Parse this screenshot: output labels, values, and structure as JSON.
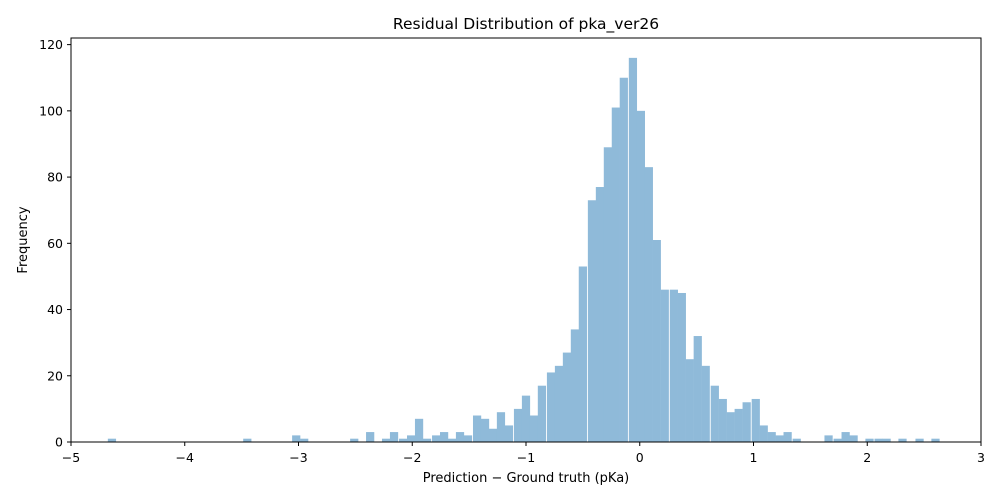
{
  "chart_data": {
    "type": "bar",
    "title": "Residual Distribution of pka_ver26",
    "xlabel": "Prediction − Ground truth (pKa)",
    "ylabel": "Frequency",
    "xlim": [
      -5.0,
      3.0
    ],
    "ylim": [
      0,
      122
    ],
    "xticks": [
      -5,
      -4,
      -3,
      -2,
      -1,
      0,
      1,
      2,
      3
    ],
    "xtick_labels": [
      "−5",
      "−4",
      "−3",
      "−2",
      "−1",
      "0",
      "1",
      "2",
      "3"
    ],
    "yticks": [
      0,
      20,
      40,
      60,
      80,
      100,
      120
    ],
    "ytick_labels": [
      "0",
      "20",
      "40",
      "60",
      "80",
      "100",
      "120"
    ],
    "grid": false,
    "legend": null,
    "bar_color": "#8fbad9",
    "bin_width": 0.0723,
    "bins": [
      {
        "x": -4.64,
        "count": 1
      },
      {
        "x": -3.45,
        "count": 1
      },
      {
        "x": -3.02,
        "count": 2
      },
      {
        "x": -2.95,
        "count": 1
      },
      {
        "x": -2.51,
        "count": 1
      },
      {
        "x": -2.37,
        "count": 3
      },
      {
        "x": -2.23,
        "count": 1
      },
      {
        "x": -2.16,
        "count": 3
      },
      {
        "x": -2.08,
        "count": 1
      },
      {
        "x": -2.01,
        "count": 2
      },
      {
        "x": -1.94,
        "count": 7
      },
      {
        "x": -1.87,
        "count": 1
      },
      {
        "x": -1.79,
        "count": 2
      },
      {
        "x": -1.72,
        "count": 3
      },
      {
        "x": -1.65,
        "count": 1
      },
      {
        "x": -1.58,
        "count": 3
      },
      {
        "x": -1.51,
        "count": 2
      },
      {
        "x": -1.43,
        "count": 8
      },
      {
        "x": -1.36,
        "count": 7
      },
      {
        "x": -1.29,
        "count": 4
      },
      {
        "x": -1.22,
        "count": 9
      },
      {
        "x": -1.15,
        "count": 5
      },
      {
        "x": -1.07,
        "count": 10
      },
      {
        "x": -1.0,
        "count": 14
      },
      {
        "x": -0.93,
        "count": 8
      },
      {
        "x": -0.86,
        "count": 17
      },
      {
        "x": -0.78,
        "count": 21
      },
      {
        "x": -0.71,
        "count": 23
      },
      {
        "x": -0.64,
        "count": 27
      },
      {
        "x": -0.57,
        "count": 34
      },
      {
        "x": -0.5,
        "count": 53
      },
      {
        "x": -0.42,
        "count": 73
      },
      {
        "x": -0.35,
        "count": 77
      },
      {
        "x": -0.28,
        "count": 89
      },
      {
        "x": -0.21,
        "count": 101
      },
      {
        "x": -0.14,
        "count": 110
      },
      {
        "x": -0.06,
        "count": 116
      },
      {
        "x": 0.01,
        "count": 100
      },
      {
        "x": 0.08,
        "count": 83
      },
      {
        "x": 0.15,
        "count": 61
      },
      {
        "x": 0.22,
        "count": 46
      },
      {
        "x": 0.3,
        "count": 46
      },
      {
        "x": 0.37,
        "count": 45
      },
      {
        "x": 0.44,
        "count": 25
      },
      {
        "x": 0.51,
        "count": 32
      },
      {
        "x": 0.58,
        "count": 23
      },
      {
        "x": 0.66,
        "count": 17
      },
      {
        "x": 0.73,
        "count": 13
      },
      {
        "x": 0.8,
        "count": 9
      },
      {
        "x": 0.87,
        "count": 10
      },
      {
        "x": 0.94,
        "count": 12
      },
      {
        "x": 1.02,
        "count": 13
      },
      {
        "x": 1.09,
        "count": 5
      },
      {
        "x": 1.16,
        "count": 3
      },
      {
        "x": 1.23,
        "count": 2
      },
      {
        "x": 1.3,
        "count": 3
      },
      {
        "x": 1.38,
        "count": 1
      },
      {
        "x": 1.66,
        "count": 2
      },
      {
        "x": 1.74,
        "count": 1
      },
      {
        "x": 1.81,
        "count": 3
      },
      {
        "x": 1.88,
        "count": 2
      },
      {
        "x": 2.02,
        "count": 1
      },
      {
        "x": 2.1,
        "count": 1
      },
      {
        "x": 2.17,
        "count": 1
      },
      {
        "x": 2.31,
        "count": 1
      },
      {
        "x": 2.46,
        "count": 1
      },
      {
        "x": 2.6,
        "count": 1
      }
    ]
  }
}
